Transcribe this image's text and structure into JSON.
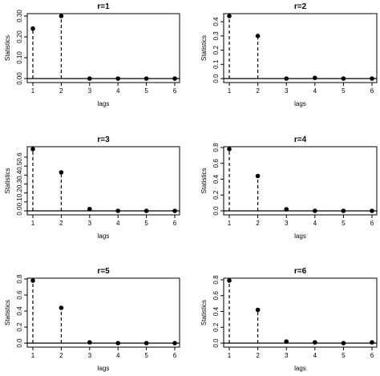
{
  "chart_data": [
    {
      "type": "scatter",
      "title": "r=1",
      "xlabel": "lags",
      "ylabel": "Statistics",
      "x": [
        1,
        2,
        3,
        4,
        5,
        6
      ],
      "values": [
        0.24,
        0.3,
        0.0,
        0.0,
        0.0,
        0.0
      ],
      "xlim": [
        1,
        6
      ],
      "ylim": [
        0,
        0.3
      ],
      "yticks": [
        "0.00",
        "0.10",
        "0.20",
        "0.30"
      ],
      "xticks": [
        "1",
        "2",
        "3",
        "4",
        "5",
        "6"
      ],
      "ref_line": 0,
      "grid": false
    },
    {
      "type": "scatter",
      "title": "r=2",
      "xlabel": "lags",
      "ylabel": "Statistics",
      "x": [
        1,
        2,
        3,
        4,
        5,
        6
      ],
      "values": [
        0.44,
        0.3,
        0.0,
        0.005,
        0.0,
        0.0
      ],
      "xlim": [
        1,
        6
      ],
      "ylim": [
        0,
        0.44
      ],
      "yticks": [
        "0.0",
        "0.1",
        "0.2",
        "0.3",
        "0.4"
      ],
      "xticks": [
        "1",
        "2",
        "3",
        "4",
        "5",
        "6"
      ],
      "ref_line": 0,
      "grid": false
    },
    {
      "type": "scatter",
      "title": "r=3",
      "xlabel": "lags",
      "ylabel": "Statistics",
      "x": [
        1,
        2,
        3,
        4,
        5,
        6
      ],
      "values": [
        0.69,
        0.43,
        0.02,
        0.0,
        0.0,
        0.0
      ],
      "xlim": [
        1,
        6
      ],
      "ylim": [
        0,
        0.69
      ],
      "yticks": [
        "0.0",
        "0.1",
        "0.2",
        "0.3",
        "0.4",
        "0.5",
        "0.6"
      ],
      "xticks": [
        "1",
        "2",
        "3",
        "4",
        "5",
        "6"
      ],
      "ref_line": 0,
      "grid": false
    },
    {
      "type": "scatter",
      "title": "r=4",
      "xlabel": "lags",
      "ylabel": "Statistics",
      "x": [
        1,
        2,
        3,
        4,
        5,
        6
      ],
      "values": [
        0.78,
        0.44,
        0.02,
        0.0,
        0.0,
        0.0
      ],
      "xlim": [
        1,
        6
      ],
      "ylim": [
        0,
        0.78
      ],
      "yticks": [
        "0.0",
        "0.2",
        "0.4",
        "0.6",
        "0.8"
      ],
      "xticks": [
        "1",
        "2",
        "3",
        "4",
        "5",
        "6"
      ],
      "ref_line": 0,
      "grid": false
    },
    {
      "type": "scatter",
      "title": "r=5",
      "xlabel": "lags",
      "ylabel": "Statistics",
      "x": [
        1,
        2,
        3,
        4,
        5,
        6
      ],
      "values": [
        0.78,
        0.44,
        0.01,
        0.0,
        0.0,
        0.0
      ],
      "xlim": [
        1,
        6
      ],
      "ylim": [
        0,
        0.78
      ],
      "yticks": [
        "0.0",
        "0.2",
        "0.4",
        "0.6",
        "0.8"
      ],
      "xticks": [
        "1",
        "2",
        "3",
        "4",
        "5",
        "6"
      ],
      "ref_line": 0,
      "grid": false
    },
    {
      "type": "scatter",
      "title": "r=6",
      "xlabel": "lags",
      "ylabel": "Statistics",
      "x": [
        1,
        2,
        3,
        4,
        5,
        6
      ],
      "values": [
        0.79,
        0.42,
        0.02,
        0.01,
        0.0,
        0.01
      ],
      "xlim": [
        1,
        6
      ],
      "ylim": [
        0,
        0.79
      ],
      "yticks": [
        "0.0",
        "0.2",
        "0.4",
        "0.6",
        "0.8"
      ],
      "xticks": [
        "1",
        "2",
        "3",
        "4",
        "5",
        "6"
      ],
      "ref_line": 0,
      "grid": false
    }
  ]
}
